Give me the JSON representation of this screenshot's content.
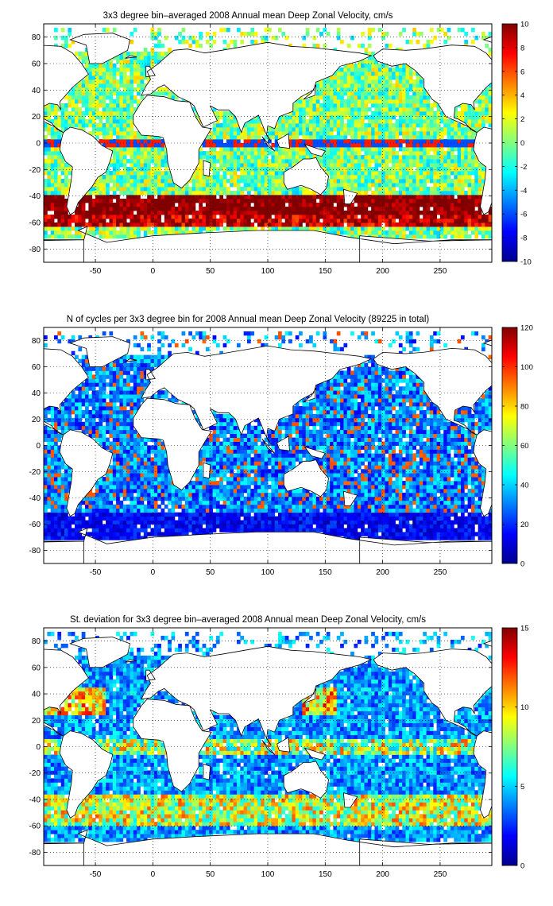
{
  "chart_data": [
    {
      "type": "heatmap",
      "title": "3x3 degree bin–averaged 2008 Annual mean Deep Zonal Velocity, cm/s",
      "xlabel": "",
      "ylabel": "",
      "xlim": [
        -95,
        295
      ],
      "ylim": [
        -90,
        90
      ],
      "x_ticks": [
        -50,
        0,
        50,
        100,
        150,
        200,
        250
      ],
      "y_ticks": [
        80,
        60,
        40,
        20,
        0,
        -20,
        -40,
        -60,
        -80
      ],
      "grid": true,
      "bin_size_deg": 3,
      "colormap": "jet",
      "colorbar": {
        "range": [
          -10,
          10
        ],
        "ticks": [
          10,
          8,
          6,
          4,
          2,
          0,
          -2,
          -4,
          -6,
          -8,
          -10
        ]
      }
    },
    {
      "type": "heatmap",
      "title": "N of cycles per 3x3 degree bin for 2008 Annual mean Deep Zonal Velocity (89225 in total)",
      "xlabel": "",
      "ylabel": "",
      "xlim": [
        -95,
        295
      ],
      "ylim": [
        -90,
        90
      ],
      "x_ticks": [
        -50,
        0,
        50,
        100,
        150,
        200,
        250
      ],
      "y_ticks": [
        80,
        60,
        40,
        20,
        0,
        -20,
        -40,
        -60,
        -80
      ],
      "grid": true,
      "bin_size_deg": 3,
      "colormap": "jet",
      "colorbar": {
        "range": [
          0,
          120
        ],
        "ticks": [
          120,
          100,
          80,
          60,
          40,
          20,
          0
        ]
      }
    },
    {
      "type": "heatmap",
      "title": "St. deviation for 3x3 degree bin–averaged 2008 Annual mean Deep Zonal Velocity, cm/s",
      "xlabel": "",
      "ylabel": "",
      "xlim": [
        -95,
        295
      ],
      "ylim": [
        -90,
        90
      ],
      "x_ticks": [
        -50,
        0,
        50,
        100,
        150,
        200,
        250
      ],
      "y_ticks": [
        80,
        60,
        40,
        20,
        0,
        -20,
        -40,
        -60,
        -80
      ],
      "grid": true,
      "bin_size_deg": 3,
      "colormap": "jet",
      "colorbar": {
        "range": [
          0,
          15
        ],
        "ticks": [
          15,
          10,
          5,
          0
        ]
      }
    }
  ]
}
